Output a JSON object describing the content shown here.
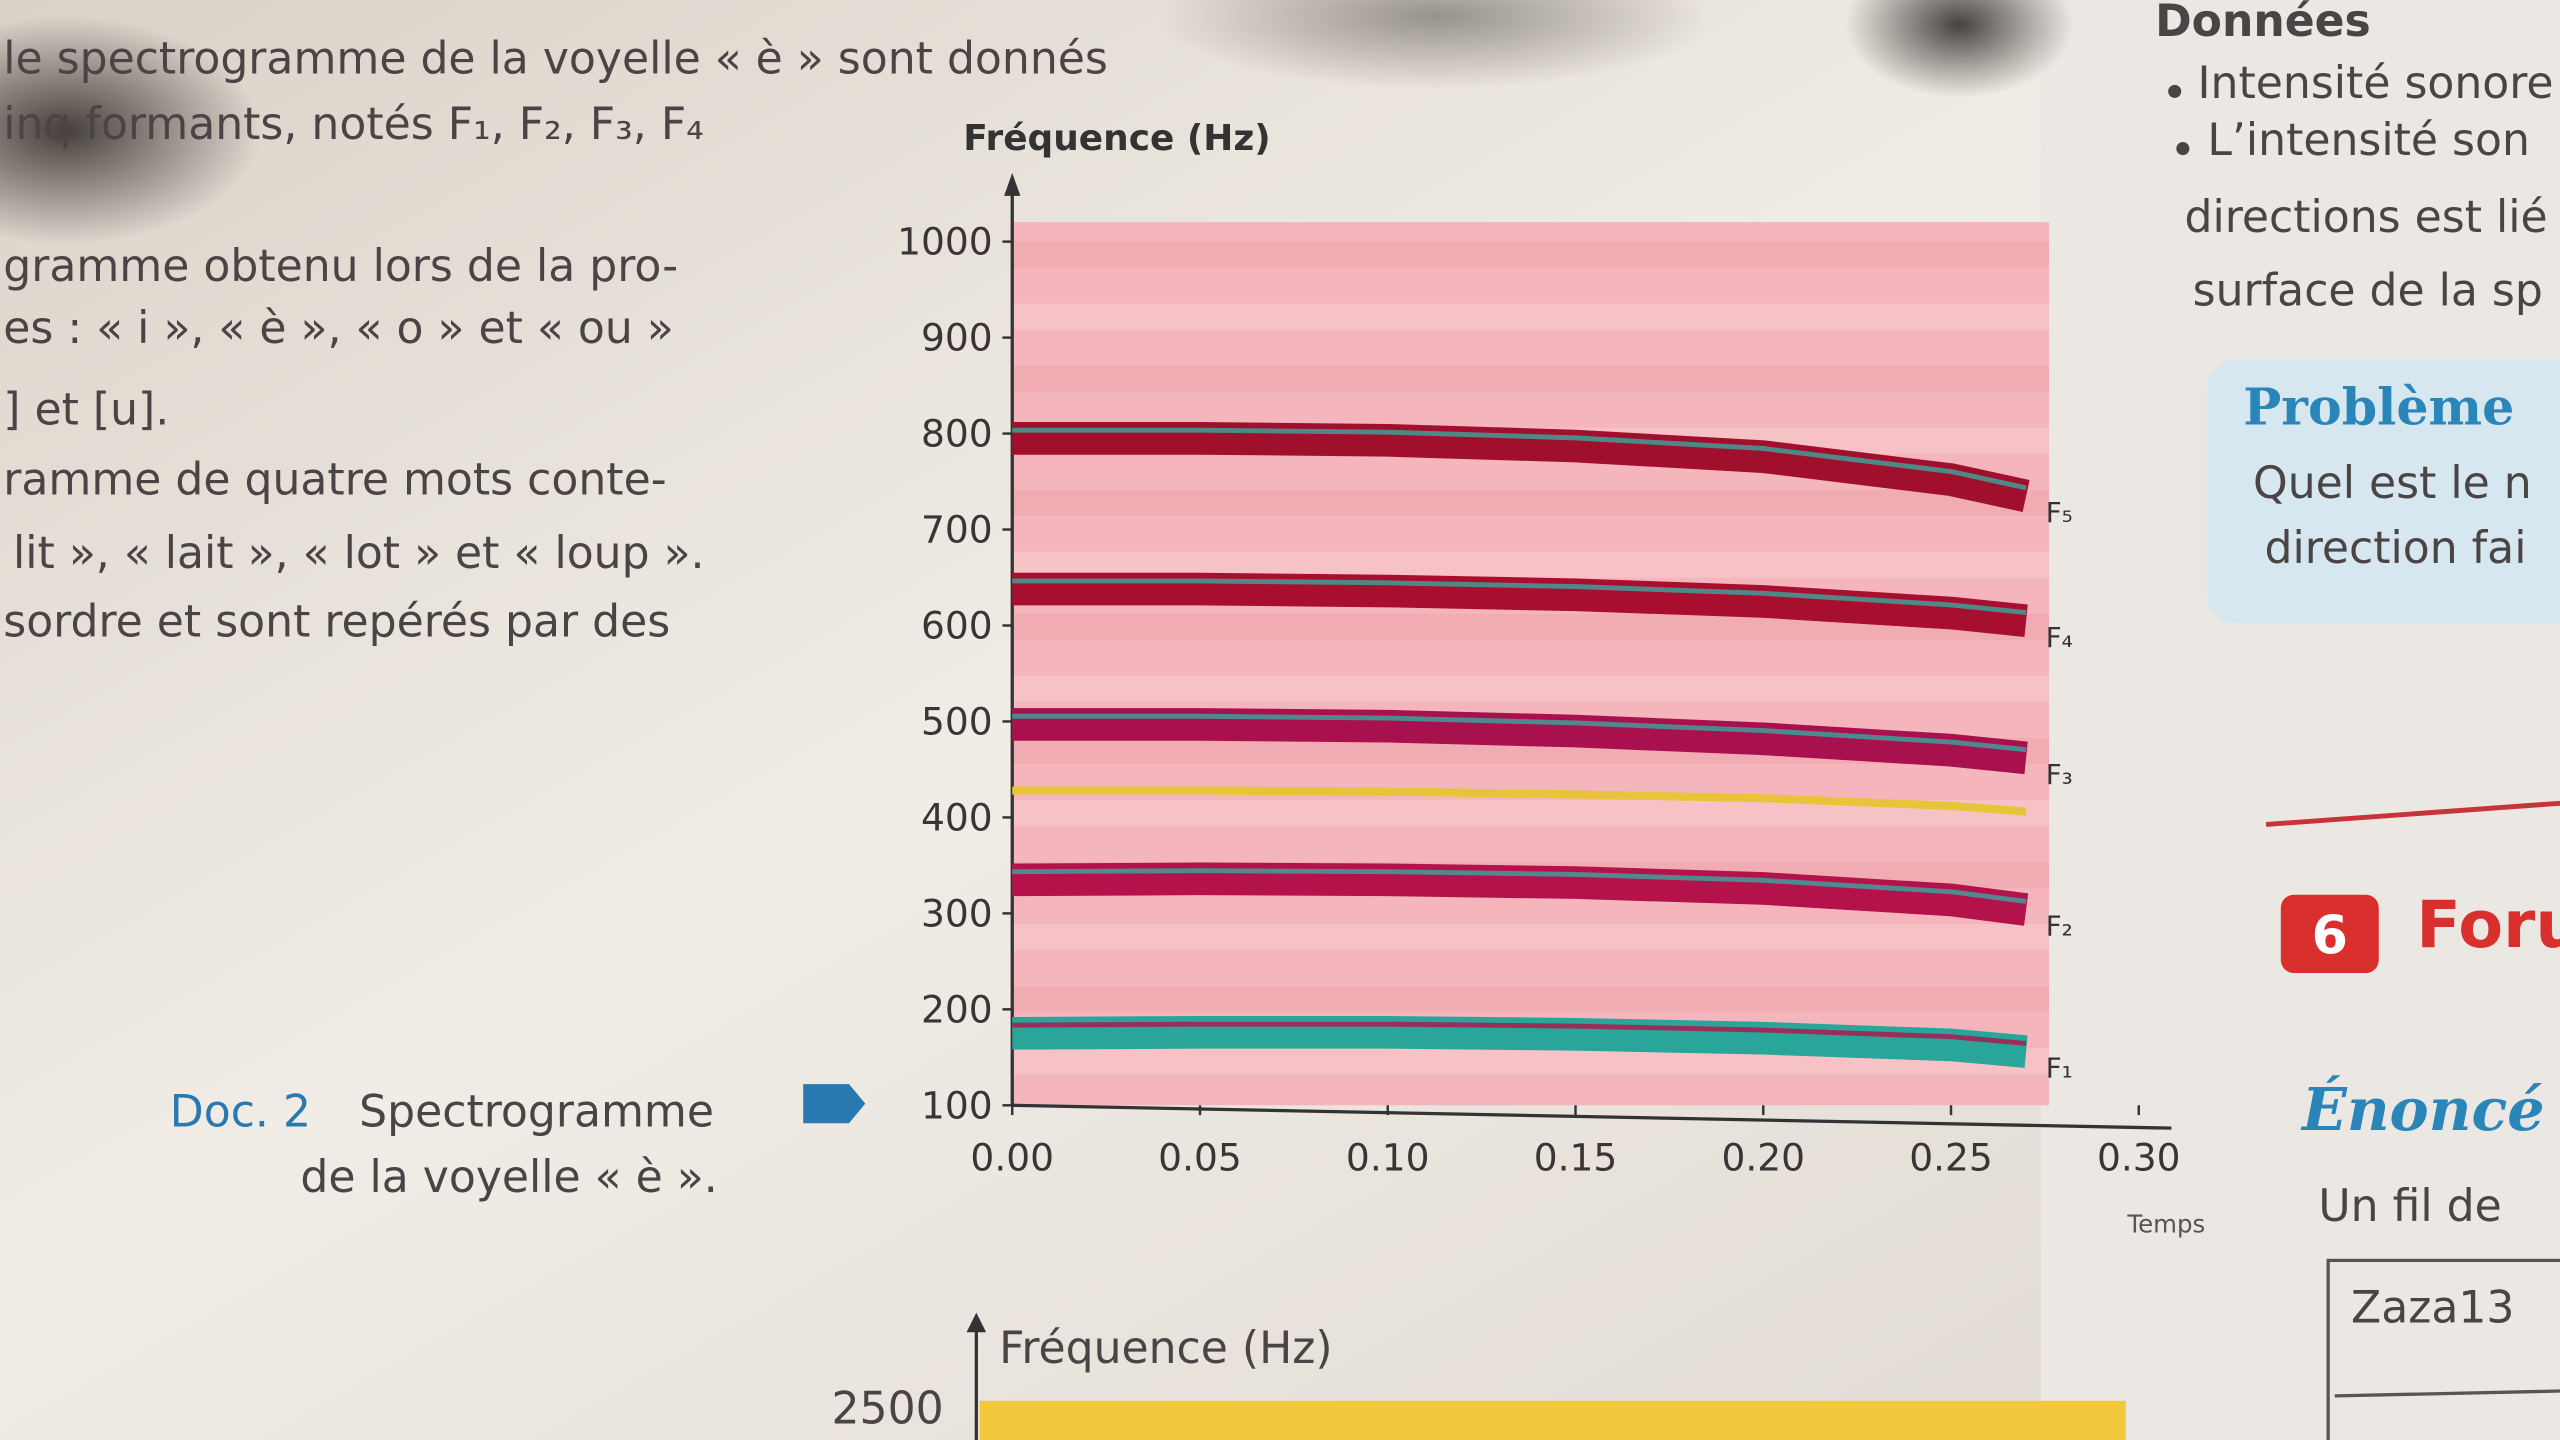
{
  "page": {
    "intro": [
      "le spectrogramme de la voyelle « è » sont donnés",
      "inq formants, notés F₁, F₂, F₃, F₄"
    ],
    "body": [
      "gramme obtenu lors de la pro-",
      "es : « i », « è », « o » et « ou »",
      "] et [u].",
      "ramme de quatre mots conte-",
      "lit », « lait », « lot » et « loup ».",
      "sordre et sont repérés par des"
    ],
    "caption": {
      "label": "Doc. 2",
      "lines": [
        "Spectrogramme",
        "de la voyelle « è »."
      ]
    },
    "sidebar": {
      "heading": "Données",
      "bullets": [
        "Intensité sonore",
        "L’intensité son"
      ],
      "text": [
        "directions est lié",
        "surface de la sp"
      ],
      "problem": {
        "title": "Problème",
        "lines": [
          "Quel est le n",
          "direction fai"
        ]
      },
      "exercise": {
        "number": "6",
        "title": "Foru"
      },
      "statement": {
        "title": "Énoncé",
        "line": "Un fil de"
      },
      "table_cell": "Zaza13"
    },
    "second_chart": {
      "y_label": "Fréquence (Hz)",
      "ytick": "2500"
    }
  },
  "chart_data": {
    "type": "line",
    "y_label": "Fréquence (Hz)",
    "x_label": "Temps",
    "x": [
      0,
      0.05,
      0.1,
      0.15,
      0.2,
      0.25,
      0.27
    ],
    "xlim": [
      0,
      0.3
    ],
    "ylim": [
      100,
      1000
    ],
    "xticks": [
      {
        "value": 0,
        "label": "0.00"
      },
      {
        "value": 0.05,
        "label": "0.05"
      },
      {
        "value": 0.1,
        "label": "0.10"
      },
      {
        "value": 0.15,
        "label": "0.15"
      },
      {
        "value": 0.2,
        "label": "0.20"
      },
      {
        "value": 0.25,
        "label": "0.25"
      },
      {
        "value": 0.3,
        "label": "0.30"
      }
    ],
    "yticks": [
      100,
      200,
      300,
      400,
      500,
      600,
      700,
      800,
      900,
      1000
    ],
    "series": [
      {
        "name": "F₁",
        "color": "#2aa59a",
        "values": [
          175,
          176,
          176,
          174,
          170,
          163,
          156
        ]
      },
      {
        "name": "F₂",
        "color": "#b3124a",
        "values": [
          335,
          336,
          335,
          332,
          326,
          314,
          304
        ]
      },
      {
        "name": "F₃",
        "color": "#a8104e",
        "values": [
          497,
          497,
          495,
          490,
          482,
          470,
          462
        ]
      },
      {
        "color": "#e8c43a",
        "values": [
          428,
          428,
          427,
          424,
          420,
          412,
          406
        ]
      },
      {
        "name": "F₄",
        "color": "#a80f2e",
        "values": [
          638,
          638,
          636,
          632,
          625,
          613,
          605
        ]
      },
      {
        "name": "F₅",
        "color": "#a0102c",
        "values": [
          795,
          795,
          793,
          787,
          776,
          752,
          735
        ]
      }
    ]
  }
}
